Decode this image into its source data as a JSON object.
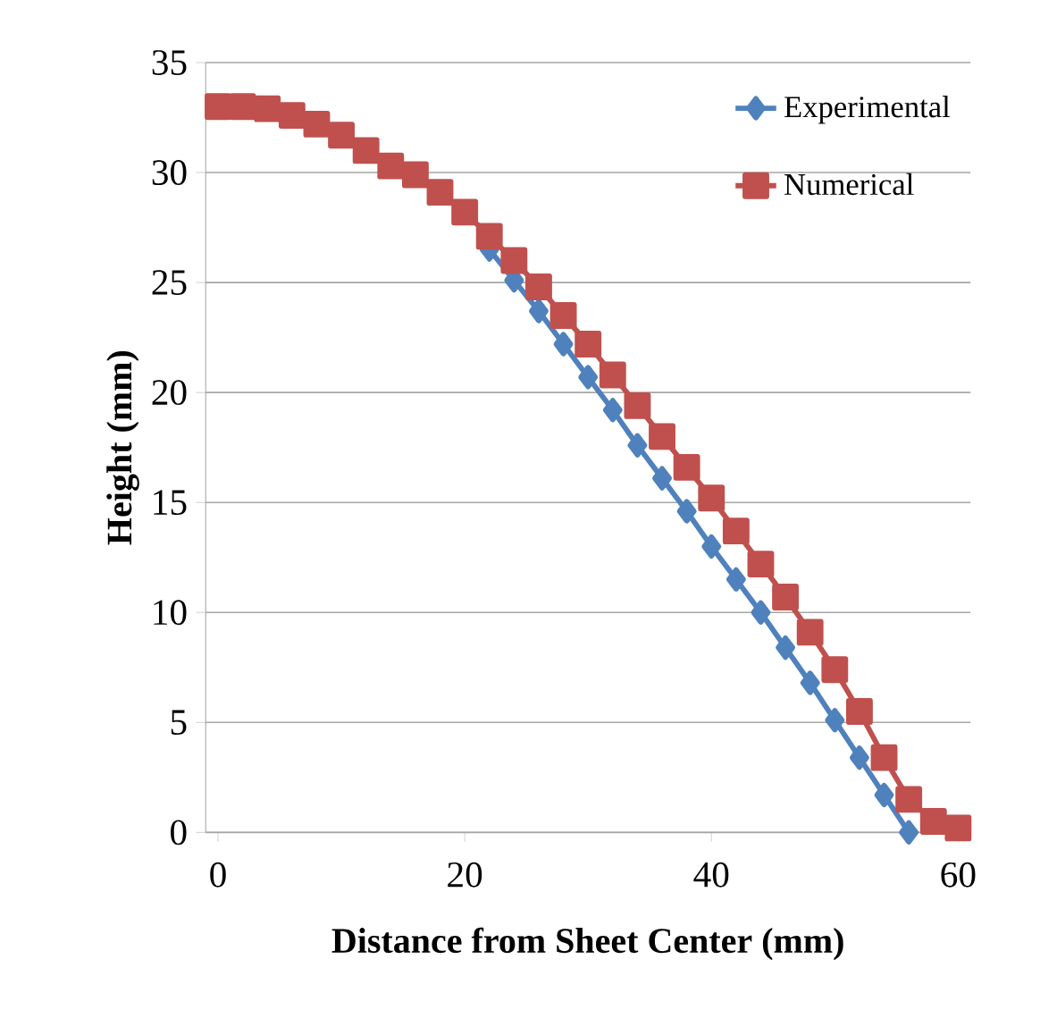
{
  "chart_data": {
    "type": "line",
    "xlabel": "Distance from Sheet Center (mm)",
    "ylabel": "Height (mm)",
    "xlim": [
      -1,
      61
    ],
    "ylim": [
      0,
      35
    ],
    "xticks": [
      0,
      20,
      40,
      60
    ],
    "yticks": [
      0,
      5,
      10,
      15,
      20,
      25,
      30,
      35
    ],
    "grid": "y",
    "legend": "top right",
    "line_style": "solid",
    "series": [
      {
        "name": "Experimental",
        "color": "#4f81bd",
        "marker": "diamond",
        "x": [
          22,
          24,
          26,
          28,
          30,
          32,
          34,
          36,
          38,
          40,
          42,
          44,
          46,
          48,
          50,
          52,
          54,
          56
        ],
        "values": [
          26.5,
          25.1,
          23.7,
          22.2,
          20.7,
          19.2,
          17.6,
          16.1,
          14.6,
          13.0,
          11.5,
          10.0,
          8.4,
          6.8,
          5.1,
          3.4,
          1.7,
          0.0
        ]
      },
      {
        "name": "Numerical",
        "color": "#c0504d",
        "marker": "square",
        "x": [
          0,
          2,
          4,
          6,
          8,
          10,
          12,
          14,
          16,
          18,
          20,
          22,
          24,
          26,
          28,
          30,
          32,
          34,
          36,
          38,
          40,
          42,
          44,
          46,
          48,
          50,
          52,
          54,
          56,
          58,
          60
        ],
        "values": [
          33.0,
          33.0,
          32.9,
          32.6,
          32.2,
          31.7,
          31.0,
          30.3,
          29.9,
          29.1,
          28.2,
          27.1,
          26.0,
          24.8,
          23.5,
          22.2,
          20.8,
          19.4,
          18.0,
          16.6,
          15.2,
          13.7,
          12.2,
          10.7,
          9.1,
          7.4,
          5.5,
          3.4,
          1.5,
          0.5,
          0.2
        ]
      }
    ]
  }
}
